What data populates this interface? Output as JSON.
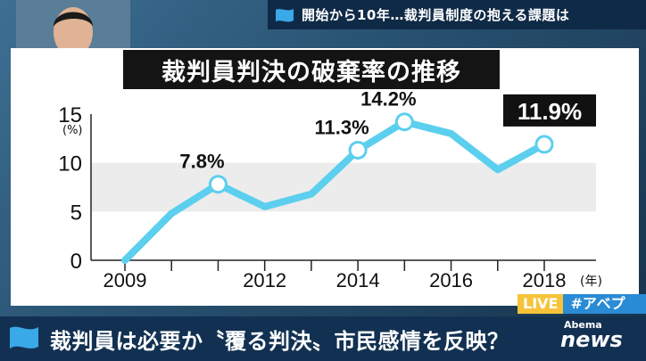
{
  "topic_banner": "開始から10年…裁判員制度の抱える課題は",
  "chart_data": {
    "type": "line",
    "title": "裁判員判決の破棄率の推移",
    "ylabel": "(%)",
    "x_unit": "(年)",
    "ylim": [
      0,
      15
    ],
    "yticks": [
      0,
      5,
      10,
      15
    ],
    "xlim": [
      2009,
      2018
    ],
    "xtick_labels": [
      "2009",
      "2012",
      "2014",
      "2016",
      "2018"
    ],
    "x": [
      2009,
      2010,
      2011,
      2012,
      2013,
      2014,
      2015,
      2016,
      2017,
      2018
    ],
    "values": [
      0,
      4.8,
      7.8,
      5.5,
      6.8,
      11.3,
      14.2,
      13.0,
      9.3,
      11.9
    ],
    "labels": [
      {
        "x": 2011,
        "text": "7.8%"
      },
      {
        "x": 2014,
        "text": "11.3%"
      },
      {
        "x": 2015,
        "text": "14.2%"
      },
      {
        "x": 2018,
        "text": "11.9%",
        "highlight": true
      }
    ],
    "line_color": "#5ccfee",
    "band_color": "#ececec"
  },
  "live": {
    "left": "LIVE",
    "right": "#アベプラ"
  },
  "headline": "裁判員は必要か〝覆る判決〟市民感情を反映？",
  "logo": {
    "small": "Abema",
    "big": "news"
  }
}
